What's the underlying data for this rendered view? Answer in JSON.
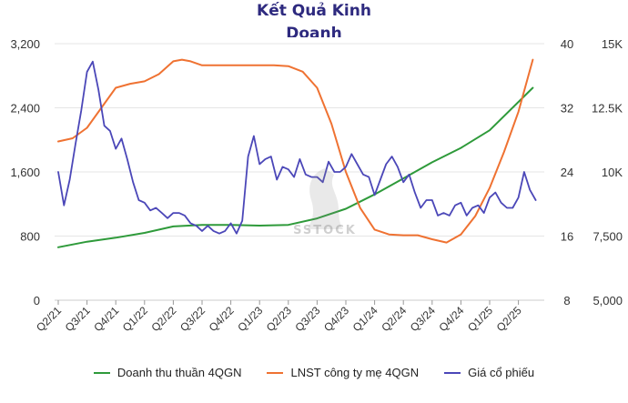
{
  "title_line1": "Kết Quả Kinh",
  "title_line2": "Doanh",
  "chart_data": {
    "type": "line",
    "title": "Kết Quả Kinh Doanh",
    "x_labels": [
      "Q2/21",
      "Q3/21",
      "Q4/21",
      "Q1/22",
      "Q2/22",
      "Q3/22",
      "Q4/22",
      "Q1/23",
      "Q2/23",
      "Q3/23",
      "Q4/23",
      "Q1/24",
      "Q2/24",
      "Q3/24",
      "Q4/24",
      "Q1/25",
      "Q2/25"
    ],
    "axes": {
      "left": {
        "ylim": [
          0,
          3200
        ],
        "ticks": [
          0,
          800,
          1600,
          2400,
          3200
        ],
        "tick_labels": [
          "0",
          "800",
          "1,600",
          "2,400",
          "3,200"
        ]
      },
      "right_inner": {
        "ylim": [
          8,
          40
        ],
        "ticks": [
          8,
          16,
          24,
          32,
          40
        ],
        "tick_labels": [
          "8",
          "16",
          "24",
          "32",
          "40"
        ]
      },
      "right_outer": {
        "ylim": [
          5000,
          15000
        ],
        "ticks": [
          5000,
          7500,
          10000,
          12500,
          15000
        ],
        "tick_labels": [
          "5,000",
          "7,500",
          "10K",
          "12.5K",
          "15K"
        ]
      }
    },
    "series": [
      {
        "name": "Doanh thu thuần 4QGN",
        "axis": "left",
        "color": "#2e9a3a",
        "x": [
          0,
          1,
          2,
          3,
          4,
          5,
          6,
          7,
          8,
          9,
          10,
          11,
          12,
          13,
          14,
          15,
          16.5
        ],
        "values": [
          660,
          730,
          780,
          840,
          920,
          940,
          940,
          930,
          940,
          1020,
          1140,
          1320,
          1520,
          1720,
          1900,
          2120,
          2650
        ]
      },
      {
        "name": "LNST công ty mẹ 4QGN",
        "axis": "right_inner",
        "color": "#ef7232",
        "x": [
          0,
          0.5,
          1,
          1.5,
          2,
          2.5,
          3,
          3.5,
          4,
          4.3,
          4.6,
          5,
          5.5,
          6,
          6.5,
          7,
          7.5,
          8,
          8.5,
          9,
          9.5,
          10,
          10.5,
          11,
          11.5,
          12,
          12.5,
          13,
          13.5,
          14,
          14.5,
          15,
          15.5,
          16,
          16.5
        ],
        "values": [
          27.8,
          28.2,
          29.5,
          32,
          34.5,
          35,
          35.3,
          36.2,
          37.8,
          38.0,
          37.8,
          37.3,
          37.3,
          37.3,
          37.3,
          37.3,
          37.3,
          37.2,
          36.5,
          34.5,
          30,
          24,
          19.5,
          16.8,
          16.2,
          16.1,
          16.1,
          15.6,
          15.2,
          16.2,
          18.5,
          22,
          26.5,
          31.5,
          38
        ]
      },
      {
        "name": "Giá cổ phiếu",
        "axis": "right_outer",
        "color": "#4b47b8",
        "x": [
          0,
          0.2,
          0.4,
          0.6,
          0.8,
          1,
          1.2,
          1.4,
          1.6,
          1.8,
          2,
          2.2,
          2.4,
          2.6,
          2.8,
          3,
          3.2,
          3.4,
          3.6,
          3.8,
          4,
          4.2,
          4.4,
          4.6,
          4.8,
          5,
          5.2,
          5.4,
          5.6,
          5.8,
          6,
          6.2,
          6.4,
          6.6,
          6.8,
          7,
          7.2,
          7.4,
          7.6,
          7.8,
          8,
          8.2,
          8.4,
          8.6,
          8.8,
          9,
          9.2,
          9.4,
          9.6,
          9.8,
          10,
          10.2,
          10.4,
          10.6,
          10.8,
          11,
          11.2,
          11.4,
          11.6,
          11.8,
          12,
          12.2,
          12.4,
          12.6,
          12.8,
          13,
          13.2,
          13.4,
          13.6,
          13.8,
          14,
          14.2,
          14.4,
          14.6,
          14.8,
          15,
          15.2,
          15.4,
          15.6,
          15.8,
          16,
          16.2,
          16.4,
          16.6
        ],
        "values": [
          10000,
          8700,
          9700,
          11100,
          12400,
          13900,
          14300,
          13200,
          11800,
          11600,
          10900,
          11300,
          10500,
          9600,
          8900,
          8800,
          8500,
          8600,
          8400,
          8200,
          8400,
          8400,
          8300,
          8000,
          7900,
          7700,
          7900,
          7700,
          7600,
          7700,
          8000,
          7600,
          8100,
          10600,
          11400,
          10300,
          10500,
          10600,
          9700,
          10200,
          10100,
          9800,
          10500,
          9900,
          9800,
          9800,
          9600,
          10400,
          10000,
          10000,
          10200,
          10700,
          10300,
          9900,
          9800,
          9100,
          9700,
          10300,
          10600,
          10200,
          9600,
          9900,
          9200,
          8600,
          8900,
          8900,
          8300,
          8400,
          8300,
          8700,
          8800,
          8300,
          8600,
          8700,
          8400,
          9000,
          9200,
          8800,
          8600,
          8600,
          9000,
          10000,
          9300,
          8900
        ]
      }
    ]
  },
  "legend": [
    {
      "label": "Doanh thu thuần 4QGN",
      "color": "#2e9a3a"
    },
    {
      "label": "LNST công ty mẹ 4QGN",
      "color": "#ef7232"
    },
    {
      "label": "Giá cổ phiếu",
      "color": "#4b47b8"
    }
  ],
  "watermark_text": "SSTOCK"
}
